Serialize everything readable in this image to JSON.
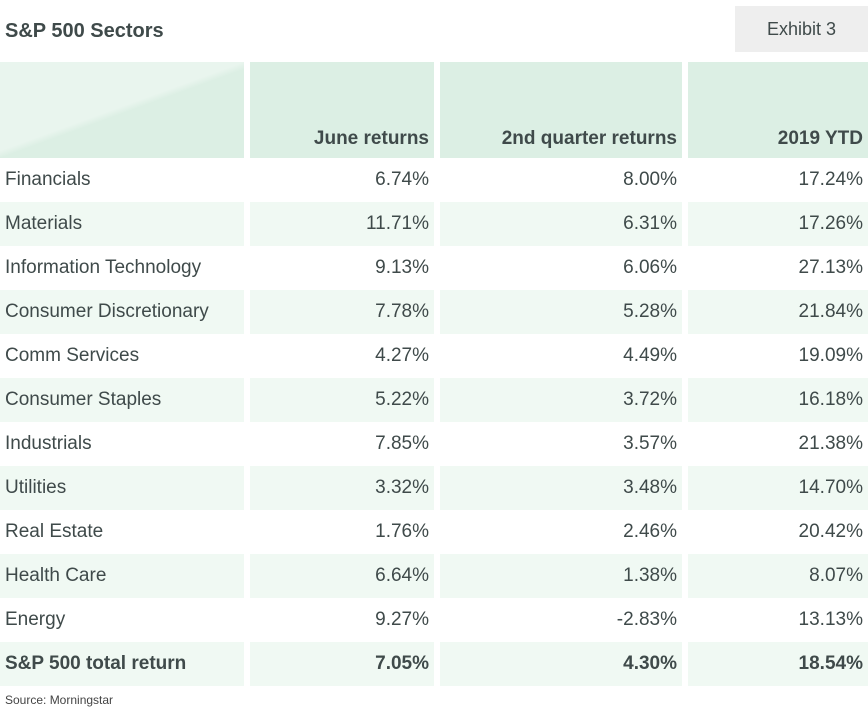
{
  "header": {
    "title": "S&P 500 Sectors",
    "exhibit": "Exhibit 3"
  },
  "chart_data": {
    "type": "table",
    "title": "S&P 500 Sectors",
    "columns": [
      "",
      "June returns",
      "2nd quarter returns",
      "2019 YTD"
    ],
    "rows": [
      [
        "Financials",
        "6.74%",
        "8.00%",
        "17.24%"
      ],
      [
        "Materials",
        "11.71%",
        "6.31%",
        "17.26%"
      ],
      [
        "Information Technology",
        "9.13%",
        "6.06%",
        "27.13%"
      ],
      [
        "Consumer Discretionary",
        "7.78%",
        "5.28%",
        "21.84%"
      ],
      [
        "Comm Services",
        "4.27%",
        "4.49%",
        "19.09%"
      ],
      [
        "Consumer Staples",
        "5.22%",
        "3.72%",
        "16.18%"
      ],
      [
        "Industrials",
        "7.85%",
        "3.57%",
        "21.38%"
      ],
      [
        "Utilities",
        "3.32%",
        "3.48%",
        "14.70%"
      ],
      [
        "Real Estate",
        "1.76%",
        "2.46%",
        "20.42%"
      ],
      [
        "Health Care",
        "6.64%",
        "1.38%",
        "8.07%"
      ],
      [
        "Energy",
        "9.27%",
        "-2.83%",
        "13.13%"
      ]
    ],
    "total_row": [
      "S&P 500 total return",
      "7.05%",
      "4.30%",
      "18.54%"
    ]
  },
  "footer": {
    "source": "Source: Morningstar"
  }
}
